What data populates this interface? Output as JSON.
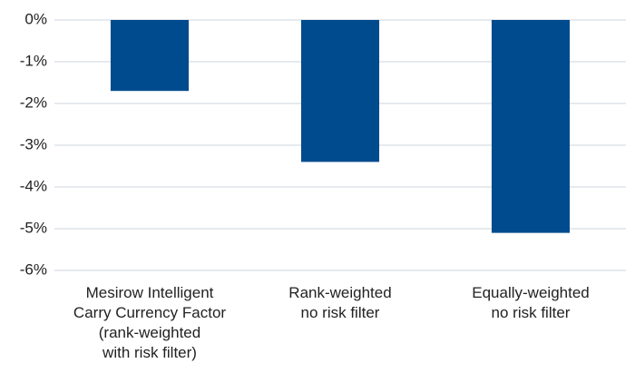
{
  "chart_data": {
    "type": "bar",
    "categories": [
      "Mesirow Intelligent\nCarry Currency Factor\n(rank-weighted\nwith risk filter)",
      "Rank-weighted\nno risk filter",
      "Equally-weighted\nno risk filter"
    ],
    "values": [
      -1.7,
      -3.4,
      -5.1
    ],
    "color": "#004b8d",
    "ylim": [
      -6,
      0
    ],
    "yticks": [
      {
        "value": 0,
        "label": "0%"
      },
      {
        "value": -1,
        "label": "-1%"
      },
      {
        "value": -2,
        "label": "-2%"
      },
      {
        "value": -3,
        "label": "-3%"
      },
      {
        "value": -4,
        "label": "-4%"
      },
      {
        "value": -5,
        "label": "-5%"
      },
      {
        "value": -6,
        "label": "-6%"
      }
    ],
    "grid": true
  }
}
